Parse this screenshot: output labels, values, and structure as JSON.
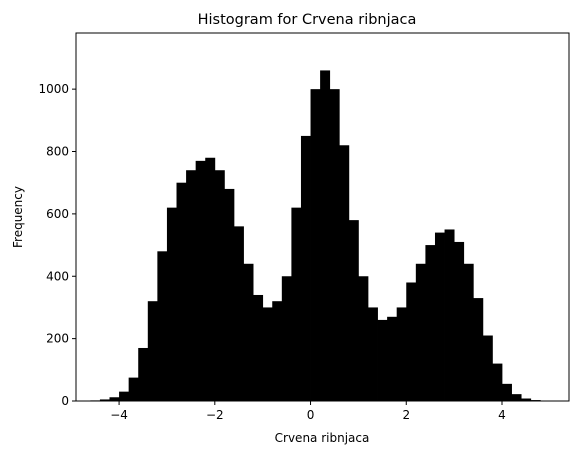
{
  "chart_data": {
    "type": "bar",
    "title": "Histogram for Crvena ribnjaca",
    "xlabel": "Crvena ribnjaca",
    "ylabel": "Frequency",
    "xlim": [
      -4.9,
      5.4
    ],
    "ylim": [
      0,
      1180
    ],
    "xticks": [
      -4,
      -2,
      0,
      2,
      4
    ],
    "xtick_labels": [
      "−4",
      "−2",
      "0",
      "2",
      "4"
    ],
    "yticks": [
      0,
      200,
      400,
      600,
      800,
      1000
    ],
    "ytick_labels": [
      "0",
      "200",
      "400",
      "600",
      "800",
      "1000"
    ],
    "grid": false,
    "legend": false,
    "bar_color": "#000000",
    "bin_width": 0.2,
    "x": [
      -4.5,
      -4.3,
      -4.1,
      -3.9,
      -3.7,
      -3.5,
      -3.3,
      -3.1,
      -2.9,
      -2.7,
      -2.5,
      -2.3,
      -2.1,
      -1.9,
      -1.7,
      -1.5,
      -1.3,
      -1.1,
      -0.9,
      -0.7,
      -0.5,
      -0.3,
      -0.1,
      0.1,
      0.3,
      0.5,
      0.7,
      0.9,
      1.1,
      1.3,
      1.5,
      1.7,
      1.9,
      2.1,
      2.3,
      2.5,
      2.7,
      2.9,
      3.1,
      3.3,
      3.5,
      3.7,
      3.9,
      4.1,
      4.3,
      4.5,
      4.7,
      4.9
    ],
    "values": [
      2,
      5,
      12,
      30,
      75,
      170,
      320,
      480,
      620,
      700,
      740,
      770,
      780,
      740,
      680,
      560,
      440,
      340,
      300,
      320,
      400,
      620,
      850,
      1000,
      1060,
      1000,
      820,
      580,
      400,
      300,
      260,
      270,
      300,
      380,
      440,
      500,
      540,
      550,
      510,
      440,
      330,
      210,
      120,
      55,
      22,
      8,
      3,
      1
    ]
  }
}
